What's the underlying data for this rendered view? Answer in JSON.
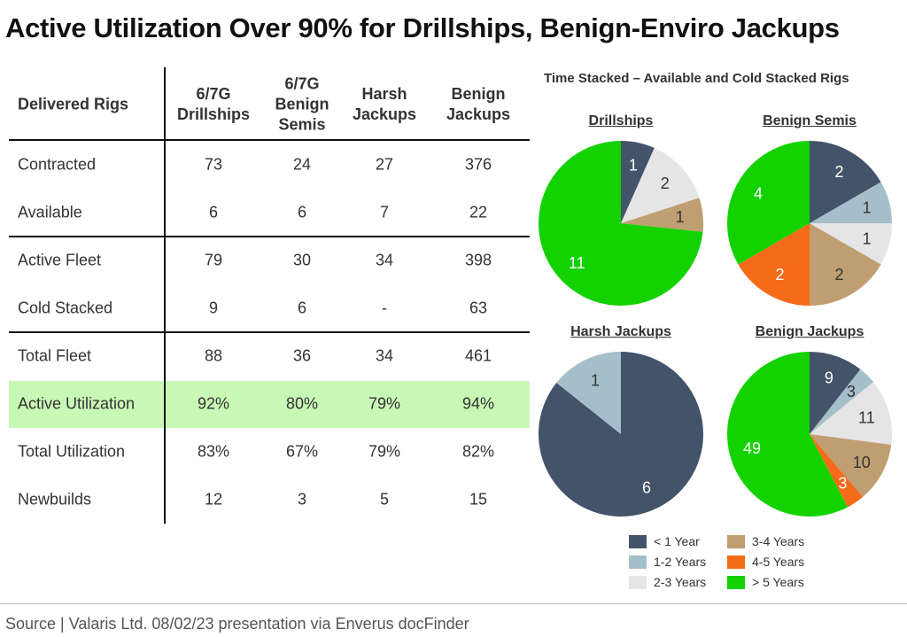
{
  "title": "Active Utilization Over 90% for Drillships, Benign-Enviro Jackups",
  "table": {
    "header": "Delivered Rigs",
    "columns": [
      "6/7G\nDrillships",
      "6/7G\nBenign\nSemis",
      "Harsh\nJackups",
      "Benign\nJackups"
    ],
    "rows": [
      {
        "label": "Contracted",
        "values": [
          "73",
          "24",
          "27",
          "376"
        ]
      },
      {
        "label": "Available",
        "values": [
          "6",
          "6",
          "7",
          "22"
        ]
      },
      {
        "label": "Active Fleet",
        "values": [
          "79",
          "30",
          "34",
          "398"
        ]
      },
      {
        "label": "Cold Stacked",
        "values": [
          "9",
          "6",
          "-",
          "63"
        ]
      },
      {
        "label": "Total Fleet",
        "values": [
          "88",
          "36",
          "34",
          "461"
        ]
      },
      {
        "label": "Active Utilization",
        "values": [
          "92%",
          "80%",
          "79%",
          "94%"
        ]
      },
      {
        "label": "Total Utilization",
        "values": [
          "83%",
          "67%",
          "79%",
          "82%"
        ]
      },
      {
        "label": "Newbuilds",
        "values": [
          "12",
          "3",
          "5",
          "15"
        ]
      }
    ],
    "highlight_color": "#c8f8b6"
  },
  "chart_data": {
    "type": "pie",
    "title": "Time Stacked – Available and Cold Stacked Rigs",
    "categories": [
      "< 1 Year",
      "1-2 Years",
      "2-3 Years",
      "3-4 Years",
      "4-5 Years",
      "> 5 Years"
    ],
    "colors": [
      "#43536a",
      "#a5bfca",
      "#e6e5e5",
      "#bf9e72",
      "#f66b19",
      "#14d200"
    ],
    "label_colors": [
      "#ffffff",
      "#333333",
      "#333333",
      "#333333",
      "#ffffff",
      "#ffffff"
    ],
    "pies": [
      {
        "name": "Drillships",
        "values": [
          1,
          0,
          2,
          1,
          0,
          11
        ]
      },
      {
        "name": "Benign Semis",
        "values": [
          2,
          1,
          1,
          2,
          2,
          4
        ]
      },
      {
        "name": "Harsh Jackups",
        "values": [
          6,
          1,
          0,
          0,
          0,
          0
        ]
      },
      {
        "name": "Benign Jackups",
        "values": [
          9,
          3,
          11,
          10,
          3,
          49
        ]
      }
    ],
    "legend": "bottom"
  },
  "source": "Source | Valaris Ltd. 08/02/23 presentation via Enverus docFinder"
}
